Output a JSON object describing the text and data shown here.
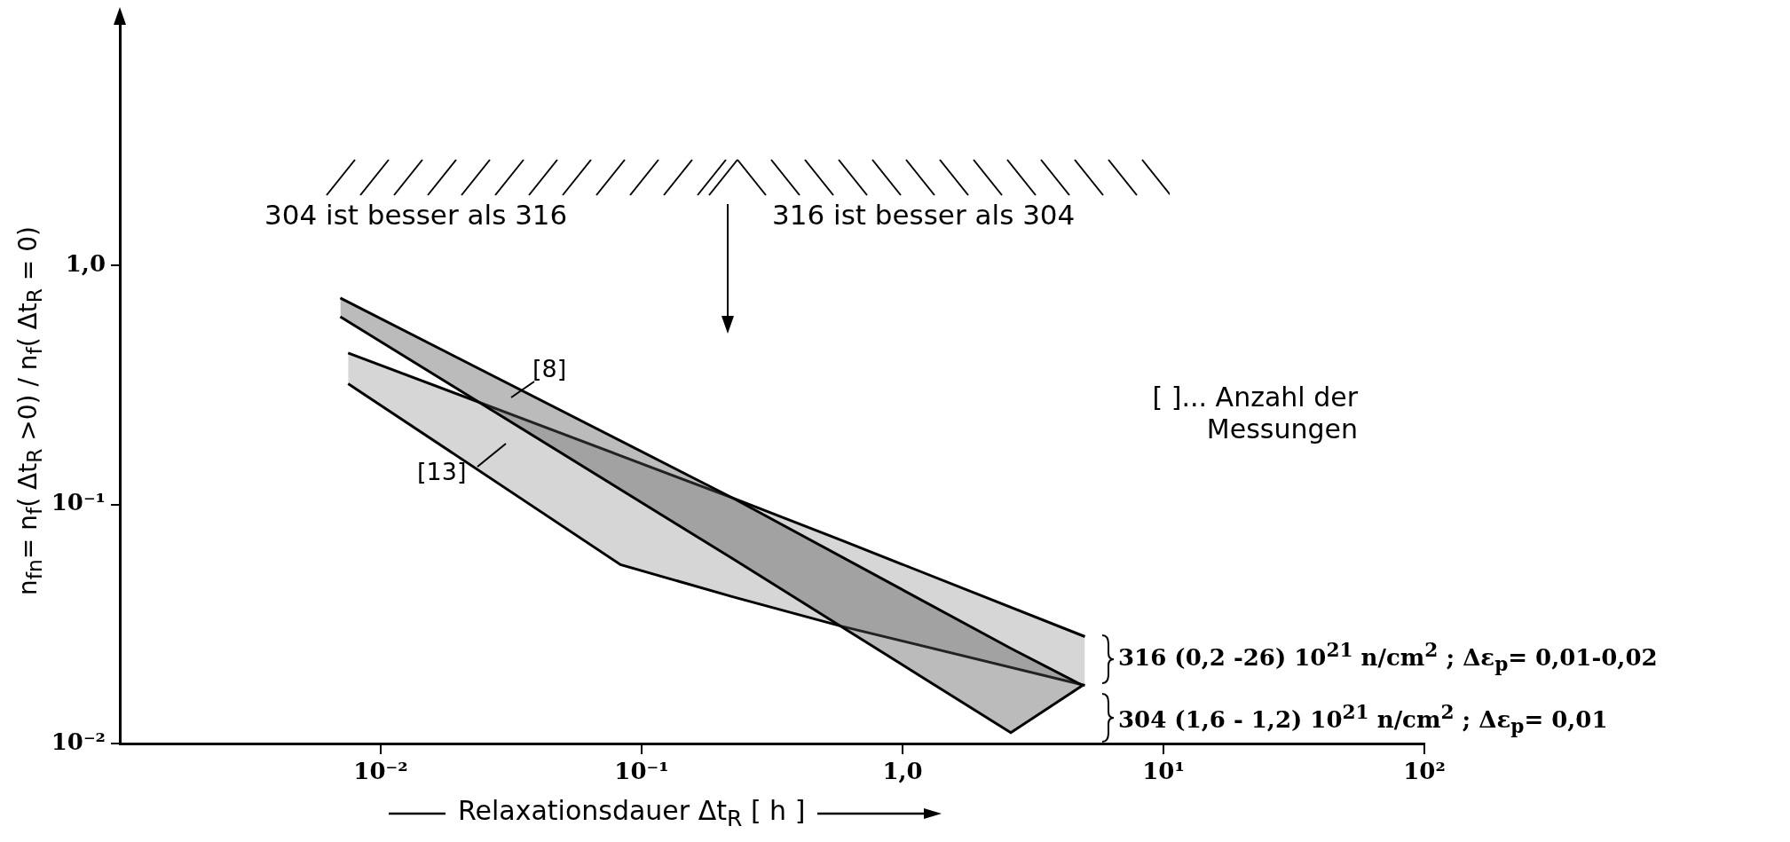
{
  "chart_data": {
    "type": "line",
    "xlabel": "Relaxationsdauer Δt$_{R}$ [ h ]",
    "ylabel": "n$_{fn}$= n$_{f}$( Δt$_{R}$ >0) / n$_{f}$( Δt$_{R}$ = 0)",
    "log": "xy",
    "xlim": [
      0.001,
      100
    ],
    "ylim": [
      0.01,
      10
    ],
    "xticks": [
      {
        "value": 0.01,
        "label": "10⁻²"
      },
      {
        "value": 0.1,
        "label": "10⁻¹"
      },
      {
        "value": 1,
        "label": "1,0"
      },
      {
        "value": 10,
        "label": "10¹"
      },
      {
        "value": 100,
        "label": "10²"
      }
    ],
    "yticks": [
      {
        "value": 0.01,
        "label": "10⁻²"
      },
      {
        "value": 0.1,
        "label": "10⁻¹"
      },
      {
        "value": 1,
        "label": "1,0"
      }
    ],
    "series": [
      {
        "color": "#000000",
        "x": [
          0.007,
          0.225,
          2.6,
          4.9
        ],
        "values": [
          0.61,
          0.059,
          0.0111,
          0.0175
        ]
      },
      {
        "type": "area",
        "color": "#555555",
        "x": [
          0.007,
          0.225,
          2.6,
          4.9
        ],
        "values": [
          0.73,
          0.106,
          0.025,
          0.0175
        ]
      },
      {
        "color": "#000000",
        "x": [
          0.0075,
          0.083,
          0.225,
          0.58,
          5.0
        ],
        "values": [
          0.32,
          0.056,
          0.041,
          0.031,
          0.0175
        ]
      },
      {
        "type": "area",
        "color": "#999999",
        "x": [
          0.0075,
          0.083,
          0.225,
          0.58,
          5.0
        ],
        "values": [
          0.43,
          0.16,
          0.106,
          0.071,
          0.028
        ]
      }
    ],
    "annotations": [
      "304 ist besser als 316",
      "316 ist besser als 304",
      "[8]",
      "[13]",
      "[ ]... Anzahl der Messungen",
      "316 (0,2 -26) 10$^{21}$ n/cm$^{2}$ ; Δε$_{p}$= 0,01-0,02",
      "304 (1,6 - 1,2) 10$^{21}$ n/cm$^{2}$ ; Δε$_{p}$= 0,01"
    ]
  }
}
